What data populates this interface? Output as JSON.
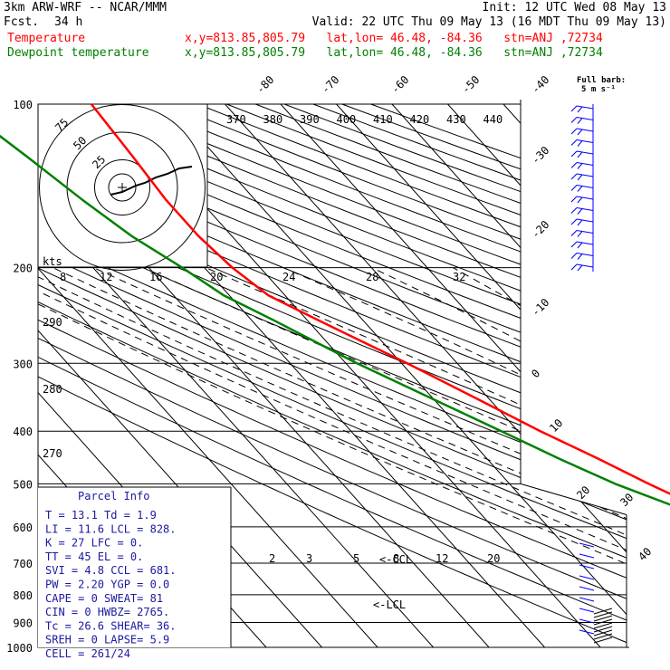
{
  "header": {
    "line1_left": "3km ARW-WRF -- NCAR/MMM",
    "line1_right": "Init: 12 UTC Wed 08 May 13",
    "fcst_label": "Fcst.",
    "fcst_value": "34 h",
    "valid": "Valid: 22 UTC Thu 09 May 13 (16 MDT Thu 09 May 13)",
    "temp_label": "Temperature",
    "temp_info": "x,y=813.85,805.79   lat,lon= 46.48, -84.36   stn=ANJ ,72734",
    "dew_label": "Dewpoint temperature",
    "dew_info": "x,y=813.85,805.79   lat,lon= 46.48, -84.36   stn=ANJ ,72734",
    "barb_label_1": "Full barb:",
    "barb_label_2": "5 m s⁻¹"
  },
  "colors": {
    "temperature": "#ff0000",
    "dewpoint": "#008000",
    "parcel_text": "#1a1aa0"
  },
  "chart_data": {
    "type": "skew-t",
    "pressure_axis": {
      "scale": "log",
      "range": [
        1000,
        100
      ],
      "ticks": [
        100,
        200,
        300,
        400,
        500,
        600,
        700,
        800,
        900,
        1000
      ]
    },
    "temperature_labels": [
      "-80",
      "-70",
      "-60",
      "-50",
      "-40",
      "-30",
      "-20",
      "-10",
      "0",
      "10",
      "20",
      "30",
      "40"
    ],
    "theta_labels": [
      "290",
      "280",
      "270"
    ],
    "mixing_ratio_labels": [
      "2",
      "3",
      "5",
      "8",
      "12",
      "20"
    ],
    "hodograph": {
      "rings_label": [
        "75",
        "50",
        "25"
      ],
      "ring_speeds": [
        25,
        50,
        75
      ],
      "units": "kts",
      "direction_axis": [
        "370",
        "380",
        "390",
        "400",
        "410",
        "420",
        "430",
        "440"
      ],
      "speed_axis": [
        "8",
        "12",
        "16",
        "20",
        "24",
        "28",
        "32"
      ]
    },
    "series": [
      {
        "name": "Temperature",
        "points": [
          [
            1000,
            21
          ],
          [
            975,
            17
          ],
          [
            950,
            14
          ],
          [
            925,
            13
          ],
          [
            900,
            14
          ],
          [
            875,
            13
          ],
          [
            850,
            11
          ],
          [
            800,
            8
          ],
          [
            750,
            6
          ],
          [
            700,
            3
          ],
          [
            650,
            -0.5
          ],
          [
            600,
            -5
          ],
          [
            550,
            -10
          ],
          [
            500,
            -15
          ],
          [
            450,
            -20
          ],
          [
            400,
            -26
          ],
          [
            350,
            -32
          ],
          [
            300,
            -39
          ],
          [
            250,
            -48
          ],
          [
            225,
            -53
          ],
          [
            200,
            -55
          ],
          [
            175,
            -56
          ],
          [
            150,
            -56
          ],
          [
            125,
            -55
          ],
          [
            100,
            -54
          ]
        ]
      },
      {
        "name": "Dewpoint temperature",
        "points": [
          [
            1000,
            7
          ],
          [
            975,
            6
          ],
          [
            950,
            6.5
          ],
          [
            925,
            8
          ],
          [
            900,
            9
          ],
          [
            875,
            9
          ],
          [
            850,
            8
          ],
          [
            800,
            5
          ],
          [
            750,
            2
          ],
          [
            700,
            0
          ],
          [
            650,
            -4
          ],
          [
            600,
            -9
          ],
          [
            550,
            -14
          ],
          [
            500,
            -21
          ],
          [
            450,
            -27
          ],
          [
            400,
            -33
          ],
          [
            350,
            -40
          ],
          [
            300,
            -48
          ],
          [
            250,
            -56
          ],
          [
            225,
            -61
          ],
          [
            200,
            -64
          ],
          [
            175,
            -68
          ],
          [
            150,
            -71
          ],
          [
            125,
            -74
          ],
          [
            100,
            -78
          ]
        ]
      }
    ],
    "annotations": [
      "<-CCL",
      "<-LCL"
    ]
  },
  "parcel": {
    "title": "Parcel  Info",
    "rows": [
      "T  =    13.1  Td =   1.9",
      "LI =    11.6  LCL =  828.",
      "K  =      27  LFC =    0.",
      "TT =      45  EL  =    0.",
      "SVI =    4.8  CCL =  681.",
      "PW =    2.20  YGP =   0.0",
      "CAPE =     0  SWEAT=   81",
      "CIN =      0  HWBZ= 2765.",
      "Tc =    26.6  SHEAR=  36.",
      "SREH =     0  LAPSE=   5.9",
      "CELL = 261/24"
    ]
  }
}
